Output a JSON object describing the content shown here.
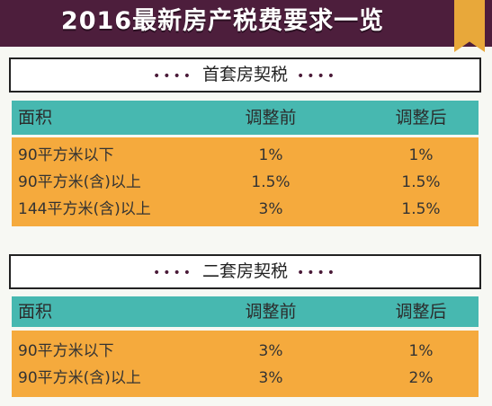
{
  "title": "2016最新房产税费要求一览",
  "columns": [
    "面积",
    "调整前",
    "调整后"
  ],
  "sections": [
    {
      "heading": "首套房契税",
      "rows": [
        [
          "90平方米以下",
          "1%",
          "1%"
        ],
        [
          "90平方米(含)以上",
          "1.5%",
          "1.5%"
        ],
        [
          "144平方米(含)以上",
          "3%",
          "1.5%"
        ]
      ]
    },
    {
      "heading": "二套房契税",
      "rows": [
        [
          "90平方米以下",
          "3%",
          "1%"
        ],
        [
          "90平方米(含)以上",
          "3%",
          "2%"
        ]
      ]
    }
  ],
  "colors": {
    "banner": "#4d1e3c",
    "header_row": "#47b8b0",
    "data_rows": "#f5aa3d",
    "ribbon": "#e8a83a"
  }
}
